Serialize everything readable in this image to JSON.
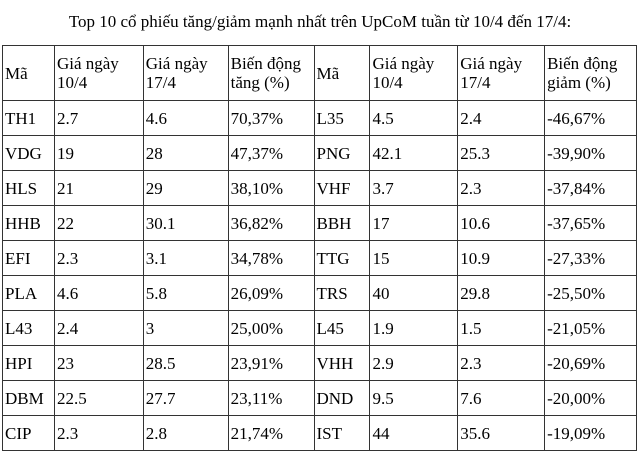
{
  "title": "Top 10 cổ phiếu tăng/giảm mạnh nhất trên UpCoM tuần từ 10/4 đến 17/4:",
  "headers": [
    "Mã",
    "Giá ngày 10/4",
    "Giá ngày 17/4",
    "Biến động tăng (%)",
    "Mã",
    "Giá ngày 10/4",
    "Giá ngày 17/4",
    "Biến động giảm (%)"
  ],
  "rows": [
    [
      "TH1",
      "2.7",
      "4.6",
      "70,37%",
      "L35",
      "4.5",
      "2.4",
      "-46,67%"
    ],
    [
      "VDG",
      "19",
      "28",
      "47,37%",
      "PNG",
      "42.1",
      "25.3",
      "-39,90%"
    ],
    [
      "HLS",
      "21",
      "29",
      "38,10%",
      "VHF",
      "3.7",
      "2.3",
      "-37,84%"
    ],
    [
      "HHB",
      "22",
      "30.1",
      "36,82%",
      "BBH",
      "17",
      "10.6",
      "-37,65%"
    ],
    [
      "EFI",
      "2.3",
      "3.1",
      "34,78%",
      "TTG",
      "15",
      "10.9",
      "-27,33%"
    ],
    [
      "PLA",
      "4.6",
      "5.8",
      "26,09%",
      "TRS",
      "40",
      "29.8",
      "-25,50%"
    ],
    [
      "L43",
      "2.4",
      "3",
      "25,00%",
      "L45",
      "1.9",
      "1.5",
      "-21,05%"
    ],
    [
      "HPI",
      "23",
      "28.5",
      "23,91%",
      "VHH",
      "2.9",
      "2.3",
      "-20,69%"
    ],
    [
      "DBM",
      "22.5",
      "27.7",
      "23,11%",
      "DND",
      "9.5",
      "7.6",
      "-20,00%"
    ],
    [
      "CIP",
      "2.3",
      "2.8",
      "21,74%",
      "IST",
      "44",
      "35.6",
      "-19,09%"
    ]
  ]
}
